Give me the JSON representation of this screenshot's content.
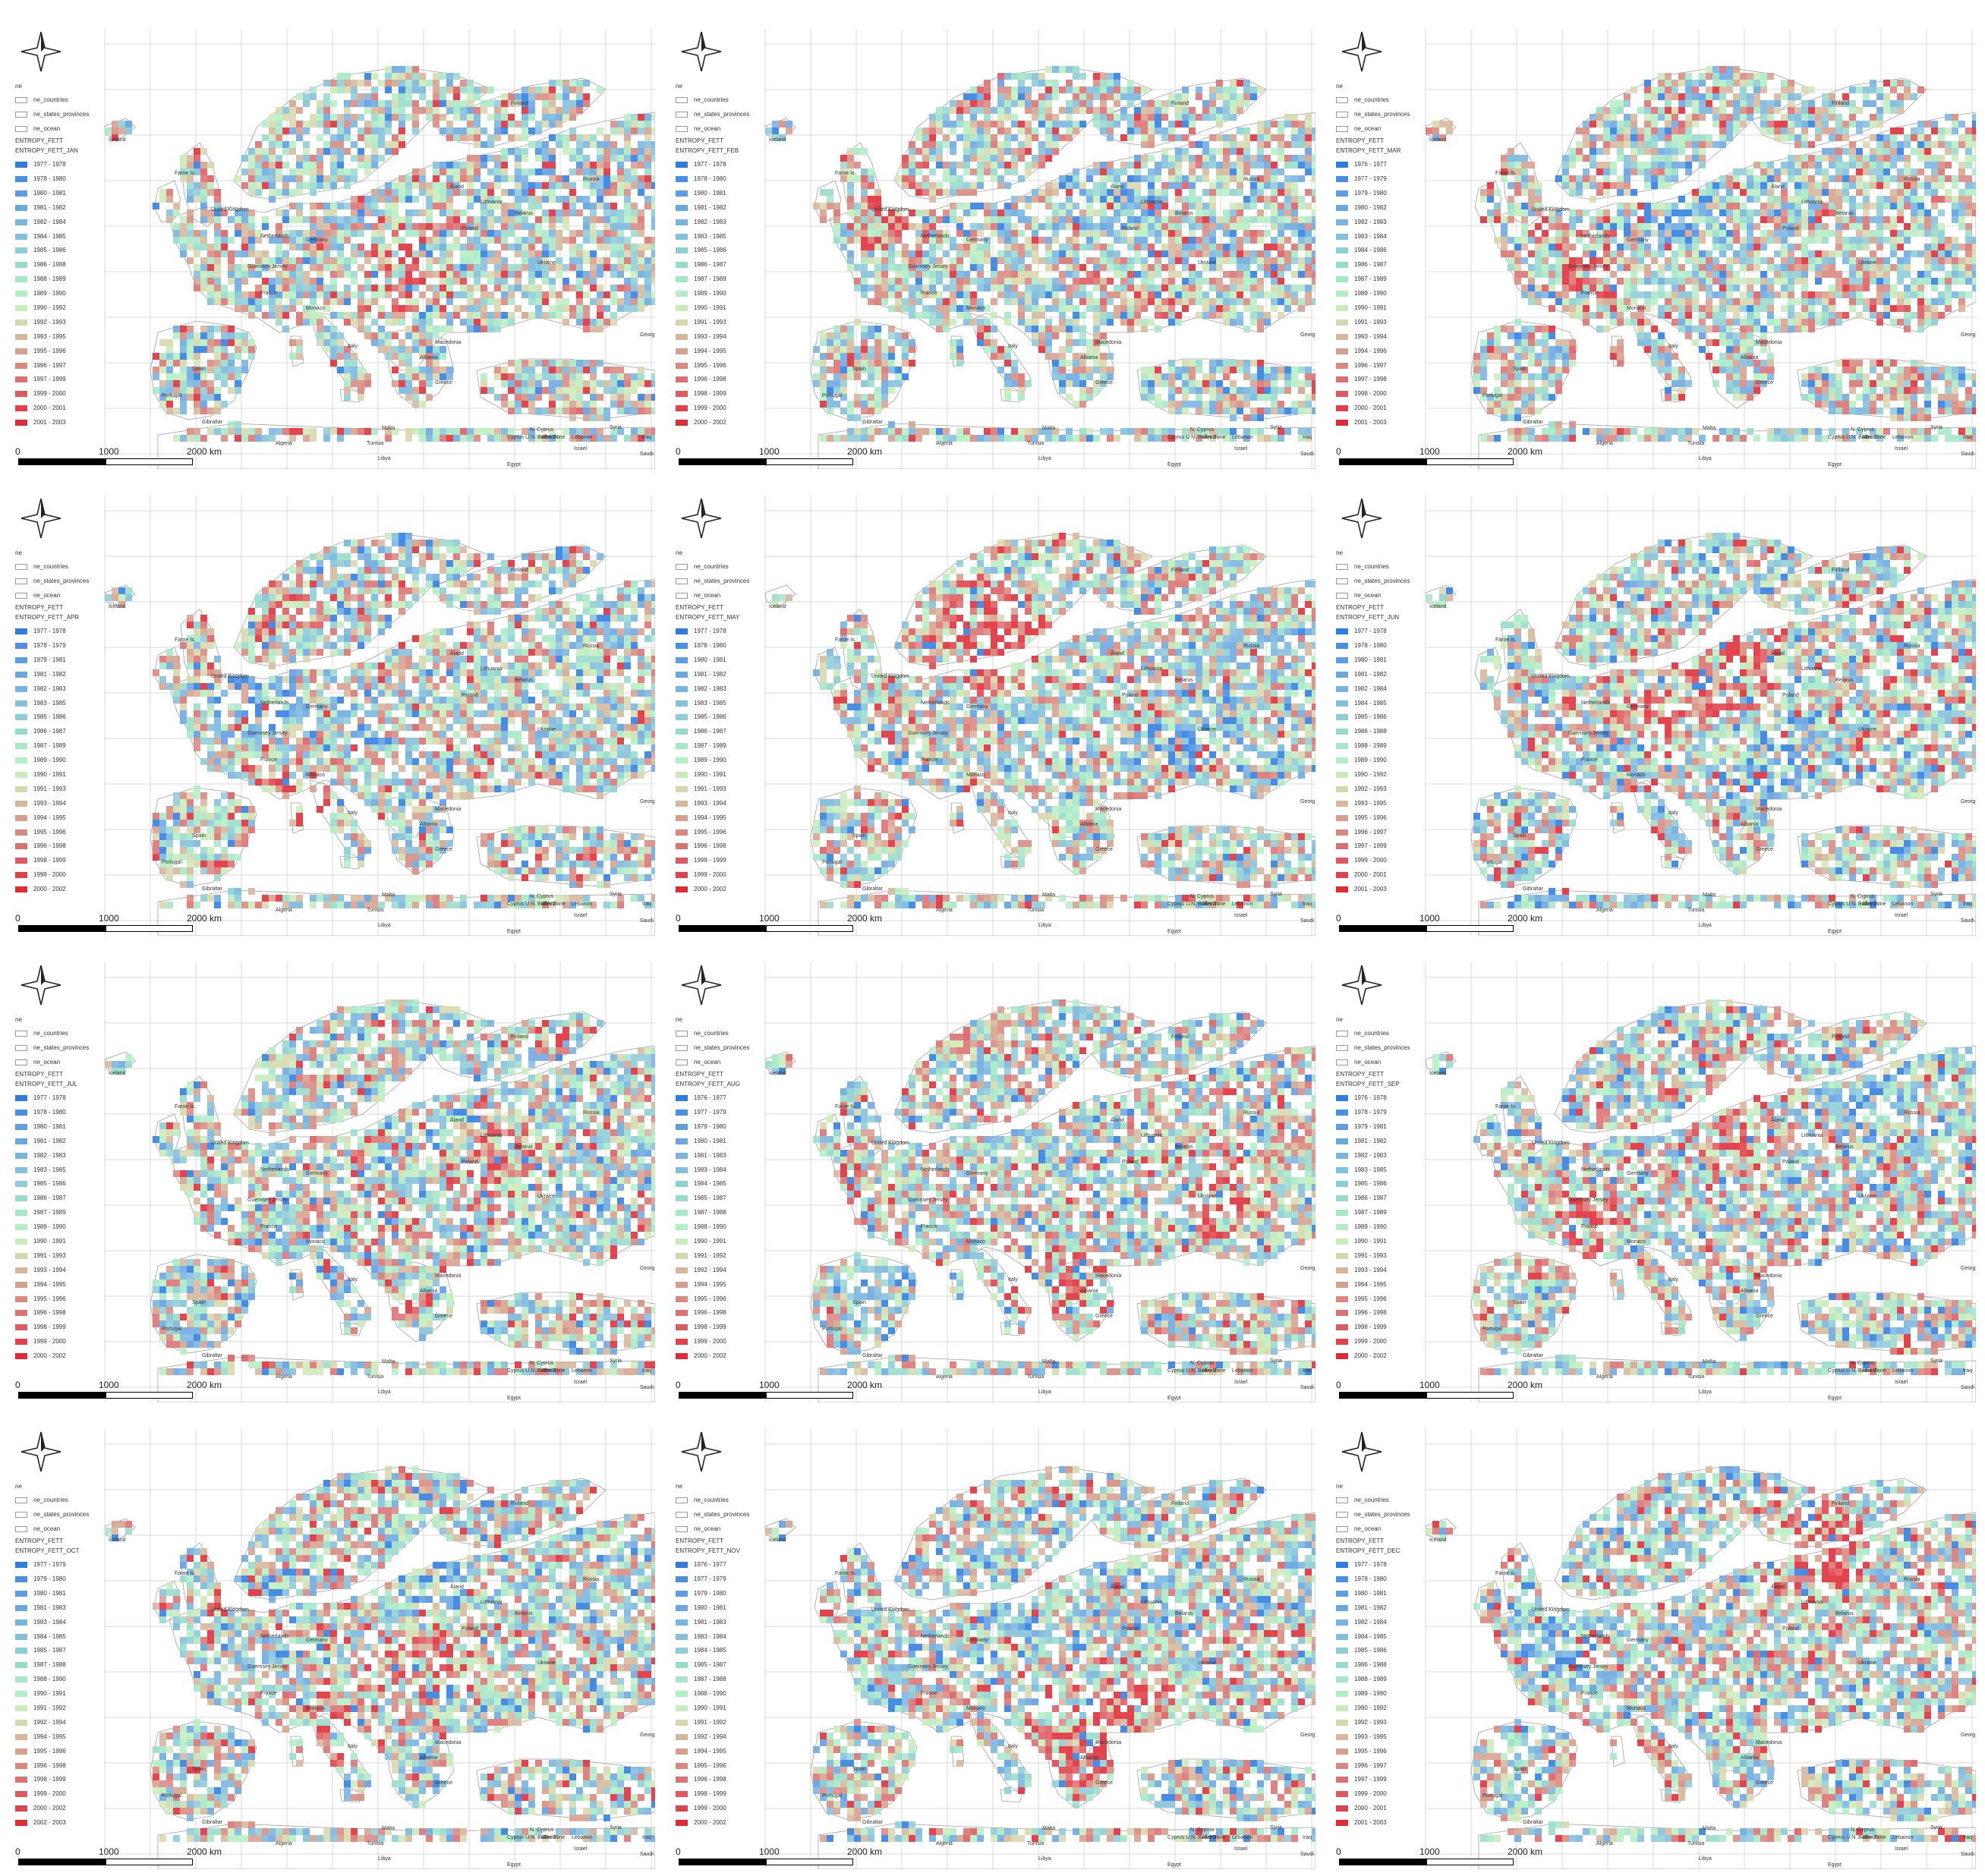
{
  "legend_common": {
    "group": "ne",
    "items": [
      "ne_countries",
      "ne_states_provinces",
      "ne_ocean"
    ],
    "layer": "ENTROPY_FETT"
  },
  "scale_labels": [
    "0",
    "1000",
    "2000 km"
  ],
  "colors": {
    "ramp": [
      "#2f7de1",
      "#4a8fe3",
      "#5c9de3",
      "#6aa8e0",
      "#78b4e0",
      "#82c0dc",
      "#8ccdd6",
      "#96dccb",
      "#a4e8c5",
      "#b3efc4",
      "#c9ecba",
      "#d7d7ad",
      "#d6b79b",
      "#d69f8e",
      "#d98980",
      "#dc7171",
      "#df5a5f",
      "#e0414a",
      "#e02a35"
    ],
    "land_edge": "#a0a0a0",
    "graticule": "#d8d8d8"
  },
  "place_labels": [
    "Iceland",
    "Faroe Is.",
    "Finland",
    "Åland",
    "Lithuania",
    "Belarus",
    "Poland",
    "Ukraine",
    "Russia",
    "United Kingdom",
    "Netherlands",
    "Germany",
    "Guernsey",
    "Jersey",
    "France",
    "Monaco",
    "Italy",
    "Spain",
    "Portugal",
    "Gibraltar",
    "Malta",
    "Greece",
    "Albania",
    "Macedonia",
    "Georgia",
    "Algeria",
    "Tunisia",
    "Libya",
    "Egypt",
    "Cyprus U.N. Buffer Zone",
    "N. Cyprus",
    "Akrotiri",
    "Lebanon",
    "Israel",
    "Syria",
    "Iraq",
    "Saudi Arabia"
  ],
  "panels": [
    {
      "id": "jan",
      "field": "ENTROPY_FETT_JAN",
      "classes": [
        "1977 - 1978",
        "1978 - 1980",
        "1980 - 1981",
        "1981 - 1982",
        "1982 - 1984",
        "1984 - 1985",
        "1985 - 1986",
        "1986 - 1988",
        "1988 - 1989",
        "1989 - 1990",
        "1990 - 1992",
        "1992 - 1993",
        "1993 - 1995",
        "1995 - 1996",
        "1996 - 1997",
        "1997 - 1999",
        "1999 - 2000",
        "2000 - 2001",
        "2001 - 2003"
      ]
    },
    {
      "id": "feb",
      "field": "ENTROPY_FETT_FEB",
      "classes": [
        "1977 - 1978",
        "1978 - 1980",
        "1980 - 1981",
        "1981 - 1982",
        "1982 - 1983",
        "1983 - 1985",
        "1985 - 1986",
        "1986 - 1987",
        "1987 - 1989",
        "1989 - 1990",
        "1990 - 1991",
        "1991 - 1993",
        "1993 - 1994",
        "1994 - 1995",
        "1995 - 1996",
        "1996 - 1998",
        "1998 - 1999",
        "1999 - 2000",
        "2000 - 2002"
      ]
    },
    {
      "id": "mar",
      "field": "ENTROPY_FETT_MAR",
      "classes": [
        "1976 - 1977",
        "1977 - 1979",
        "1979 - 1980",
        "1980 - 1982",
        "1982 - 1983",
        "1983 - 1984",
        "1984 - 1986",
        "1986 - 1987",
        "1987 - 1989",
        "1989 - 1990",
        "1990 - 1991",
        "1991 - 1993",
        "1993 - 1994",
        "1994 - 1996",
        "1996 - 1997",
        "1997 - 1998",
        "1998 - 2000",
        "2000 - 2001",
        "2001 - 2003"
      ]
    },
    {
      "id": "apr",
      "field": "ENTROPY_FETT_APR",
      "classes": [
        "1977 - 1978",
        "1978 - 1979",
        "1979 - 1981",
        "1981 - 1982",
        "1982 - 1983",
        "1983 - 1985",
        "1985 - 1986",
        "1986 - 1987",
        "1987 - 1989",
        "1989 - 1990",
        "1990 - 1991",
        "1991 - 1993",
        "1993 - 1994",
        "1994 - 1995",
        "1995 - 1996",
        "1996 - 1998",
        "1998 - 1999",
        "1999 - 2000",
        "2000 - 2002"
      ]
    },
    {
      "id": "may",
      "field": "ENTROPY_FETT_MAY",
      "classes": [
        "1977 - 1978",
        "1978 - 1980",
        "1980 - 1981",
        "1981 - 1982",
        "1982 - 1983",
        "1983 - 1985",
        "1985 - 1986",
        "1986 - 1987",
        "1987 - 1989",
        "1989 - 1990",
        "1990 - 1991",
        "1991 - 1993",
        "1993 - 1994",
        "1994 - 1995",
        "1995 - 1996",
        "1996 - 1998",
        "1998 - 1999",
        "1999 - 2000",
        "2000 - 2002"
      ]
    },
    {
      "id": "jun",
      "field": "ENTROPY_FETT_JUN",
      "classes": [
        "1977 - 1978",
        "1978 - 1980",
        "1980 - 1981",
        "1981 - 1982",
        "1982 - 1984",
        "1984 - 1985",
        "1985 - 1986",
        "1986 - 1988",
        "1988 - 1989",
        "1989 - 1990",
        "1990 - 1992",
        "1992 - 1993",
        "1993 - 1995",
        "1995 - 1996",
        "1996 - 1997",
        "1997 - 1999",
        "1999 - 2000",
        "2000 - 2001",
        "2001 - 2003"
      ]
    },
    {
      "id": "jul",
      "field": "ENTROPY_FETT_JUL",
      "classes": [
        "1977 - 1978",
        "1978 - 1980",
        "1980 - 1981",
        "1981 - 1982",
        "1982 - 1983",
        "1983 - 1985",
        "1985 - 1986",
        "1986 - 1987",
        "1987 - 1989",
        "1989 - 1990",
        "1990 - 1991",
        "1991 - 1993",
        "1993 - 1994",
        "1994 - 1995",
        "1995 - 1996",
        "1996 - 1998",
        "1998 - 1999",
        "1999 - 2000",
        "2000 - 2002"
      ]
    },
    {
      "id": "aug",
      "field": "ENTROPY_FETT_AUG",
      "classes": [
        "1976 - 1977",
        "1977 - 1979",
        "1979 - 1980",
        "1980 - 1981",
        "1981 - 1983",
        "1983 - 1984",
        "1984 - 1985",
        "1985 - 1987",
        "1987 - 1988",
        "1988 - 1990",
        "1990 - 1991",
        "1991 - 1992",
        "1992 - 1994",
        "1994 - 1995",
        "1995 - 1996",
        "1996 - 1998",
        "1998 - 1999",
        "1999 - 2000",
        "2000 - 2002"
      ]
    },
    {
      "id": "sep",
      "field": "ENTROPY_FETT_SEP",
      "classes": [
        "1976 - 1978",
        "1978 - 1979",
        "1979 - 1981",
        "1981 - 1982",
        "1982 - 1983",
        "1983 - 1985",
        "1985 - 1986",
        "1986 - 1987",
        "1987 - 1989",
        "1989 - 1990",
        "1990 - 1991",
        "1991 - 1993",
        "1993 - 1994",
        "1994 - 1995",
        "1995 - 1996",
        "1996 - 1998",
        "1998 - 1999",
        "1999 - 2000",
        "2000 - 2002"
      ]
    },
    {
      "id": "oct",
      "field": "ENTROPY_FETT_OCT",
      "classes": [
        "1977 - 1979",
        "1979 - 1980",
        "1980 - 1981",
        "1981 - 1983",
        "1983 - 1984",
        "1984 - 1985",
        "1985 - 1987",
        "1987 - 1988",
        "1988 - 1990",
        "1990 - 1991",
        "1991 - 1992",
        "1992 - 1994",
        "1994 - 1995",
        "1995 - 1996",
        "1996 - 1998",
        "1998 - 1999",
        "1999 - 2000",
        "2000 - 2002",
        "2002 - 2003"
      ]
    },
    {
      "id": "nov",
      "field": "ENTROPY_FETT_NOV",
      "classes": [
        "1976 - 1977",
        "1977 - 1979",
        "1979 - 1980",
        "1980 - 1981",
        "1981 - 1983",
        "1983 - 1984",
        "1984 - 1985",
        "1985 - 1987",
        "1987 - 1988",
        "1988 - 1990",
        "1990 - 1991",
        "1991 - 1992",
        "1992 - 1994",
        "1994 - 1995",
        "1995 - 1996",
        "1996 - 1998",
        "1998 - 1999",
        "1999 - 2000",
        "2000 - 2002"
      ]
    },
    {
      "id": "dec",
      "field": "ENTROPY_FETT_DEC",
      "classes": [
        "1977 - 1978",
        "1978 - 1980",
        "1980 - 1981",
        "1981 - 1982",
        "1982 - 1984",
        "1984 - 1985",
        "1985 - 1986",
        "1986 - 1988",
        "1988 - 1989",
        "1989 - 1990",
        "1990 - 1992",
        "1992 - 1993",
        "1993 - 1995",
        "1995 - 1996",
        "1996 - 1997",
        "1997 - 1999",
        "1999 - 2000",
        "2000 - 2001",
        "2001 - 2003"
      ]
    }
  ]
}
